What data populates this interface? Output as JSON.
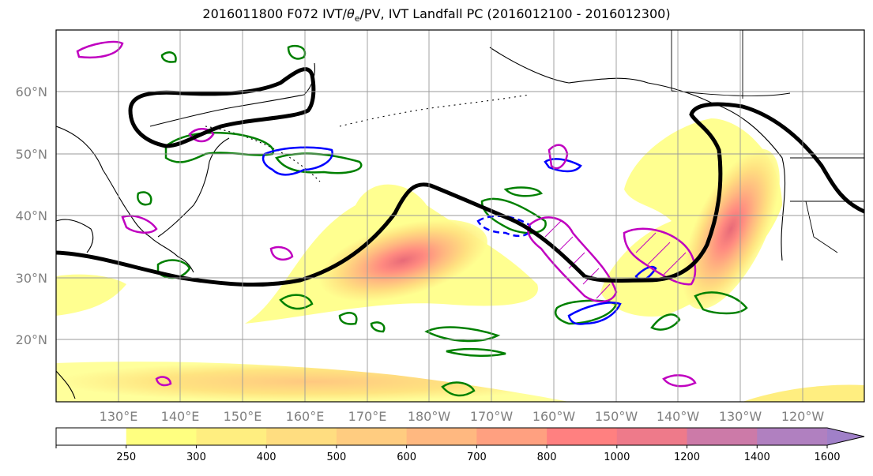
{
  "title": "2016011800 F072 IVT/θe/PV, IVT Landfall PC (2016012100 - 2016012300)",
  "title_parts": {
    "pre": "2016011800 F072 IVT/",
    "theta": "θ",
    "sub": "e",
    "post": "/PV, IVT Landfall PC (2016012100 - 2016012300)"
  },
  "map": {
    "lat_labels": [
      "60°N",
      "50°N",
      "40°N",
      "30°N",
      "20°N"
    ],
    "lon_labels": [
      "130°E",
      "140°E",
      "150°E",
      "160°E",
      "170°E",
      "180°W",
      "170°W",
      "160°W",
      "150°W",
      "140°W",
      "130°W",
      "120°W"
    ],
    "lat_range": [
      10,
      70
    ],
    "lon_range": [
      120,
      250
    ],
    "grid": true,
    "colors": {
      "jet_contour": "#000000",
      "pv_positive": "#008000",
      "pv_negative": "#0000ff",
      "theta_contour": "#c000c0",
      "coastline": "#000000"
    }
  },
  "colorbar": {
    "ticks": [
      "250",
      "300",
      "400",
      "500",
      "600",
      "700",
      "800",
      "1000",
      "1200",
      "1400",
      "1600"
    ],
    "colors": [
      "#ffffff",
      "#ffff80",
      "#ffee80",
      "#ffdd80",
      "#ffcc80",
      "#ffb880",
      "#ffa080",
      "#ff8080",
      "#ee7a8a",
      "#cc7aa8",
      "#b080c0",
      "#a080c8"
    ]
  }
}
